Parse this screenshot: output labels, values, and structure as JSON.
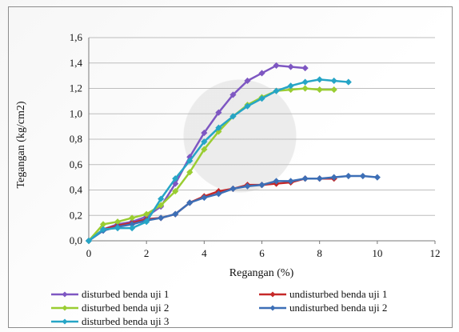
{
  "chart_data": {
    "type": "line",
    "title": "",
    "xlabel": "Regangan (%)",
    "ylabel": "Tegangan (kg/cm2)",
    "xlim": [
      0,
      12
    ],
    "ylim": [
      0,
      1.6
    ],
    "x_ticks": [
      "0",
      "2",
      "4",
      "6",
      "8",
      "10",
      "12"
    ],
    "y_ticks": [
      "0,0",
      "0,2",
      "0,4",
      "0,6",
      "0,8",
      "1,0",
      "1,2",
      "1,4",
      "1,6"
    ],
    "grid": true,
    "legend_position": "bottom",
    "series": [
      {
        "name": "disturbed benda uji 1",
        "color": "#7e57c2",
        "marker": "diamond",
        "x": [
          0,
          0.5,
          1,
          1.5,
          2,
          2.5,
          3,
          3.5,
          4,
          4.5,
          5,
          5.5,
          6,
          6.5,
          7,
          7.5
        ],
        "y": [
          0,
          0.09,
          0.13,
          0.15,
          0.19,
          0.27,
          0.45,
          0.66,
          0.85,
          1.01,
          1.15,
          1.26,
          1.32,
          1.38,
          1.37,
          1.36
        ]
      },
      {
        "name": "undisturbed benda uji 1",
        "color": "#c62828",
        "marker": "diamond",
        "x": [
          0,
          0.5,
          1,
          1.5,
          2,
          2.5,
          3,
          3.5,
          4,
          4.5,
          5,
          5.5,
          6,
          6.5,
          7,
          7.5,
          8,
          8.5
        ],
        "y": [
          0,
          0.09,
          0.12,
          0.14,
          0.17,
          0.18,
          0.21,
          0.3,
          0.35,
          0.39,
          0.41,
          0.44,
          0.44,
          0.45,
          0.46,
          0.49,
          0.49,
          0.49
        ]
      },
      {
        "name": "disturbed benda uji 2",
        "color": "#9acd32",
        "marker": "diamond",
        "x": [
          0,
          0.5,
          1,
          1.5,
          2,
          2.5,
          3,
          3.5,
          4,
          4.5,
          5,
          5.5,
          6,
          6.5,
          7,
          7.5,
          8,
          8.5
        ],
        "y": [
          0,
          0.13,
          0.15,
          0.18,
          0.21,
          0.28,
          0.39,
          0.54,
          0.72,
          0.86,
          0.98,
          1.07,
          1.13,
          1.18,
          1.19,
          1.2,
          1.19,
          1.19
        ]
      },
      {
        "name": "undisturbed benda uji 2",
        "color": "#3d6fb6",
        "marker": "diamond",
        "x": [
          0,
          0.5,
          1,
          1.5,
          2,
          2.5,
          3,
          3.5,
          4,
          4.5,
          5,
          5.5,
          6,
          6.5,
          7,
          7.5,
          8,
          8.5,
          9,
          9.5,
          10
        ],
        "y": [
          0,
          0.08,
          0.11,
          0.13,
          0.16,
          0.18,
          0.21,
          0.3,
          0.34,
          0.37,
          0.41,
          0.43,
          0.44,
          0.47,
          0.47,
          0.49,
          0.49,
          0.5,
          0.51,
          0.51,
          0.5
        ]
      },
      {
        "name": "disturbed benda uji 3",
        "color": "#26a5c6",
        "marker": "diamond",
        "x": [
          0,
          0.5,
          1,
          1.5,
          2,
          2.5,
          3,
          3.5,
          4,
          4.5,
          5,
          5.5,
          6,
          6.5,
          7,
          7.5,
          8,
          8.5,
          9
        ],
        "y": [
          0,
          0.09,
          0.1,
          0.1,
          0.15,
          0.33,
          0.49,
          0.63,
          0.78,
          0.89,
          0.98,
          1.06,
          1.12,
          1.18,
          1.22,
          1.25,
          1.27,
          1.26,
          1.25
        ]
      }
    ]
  }
}
